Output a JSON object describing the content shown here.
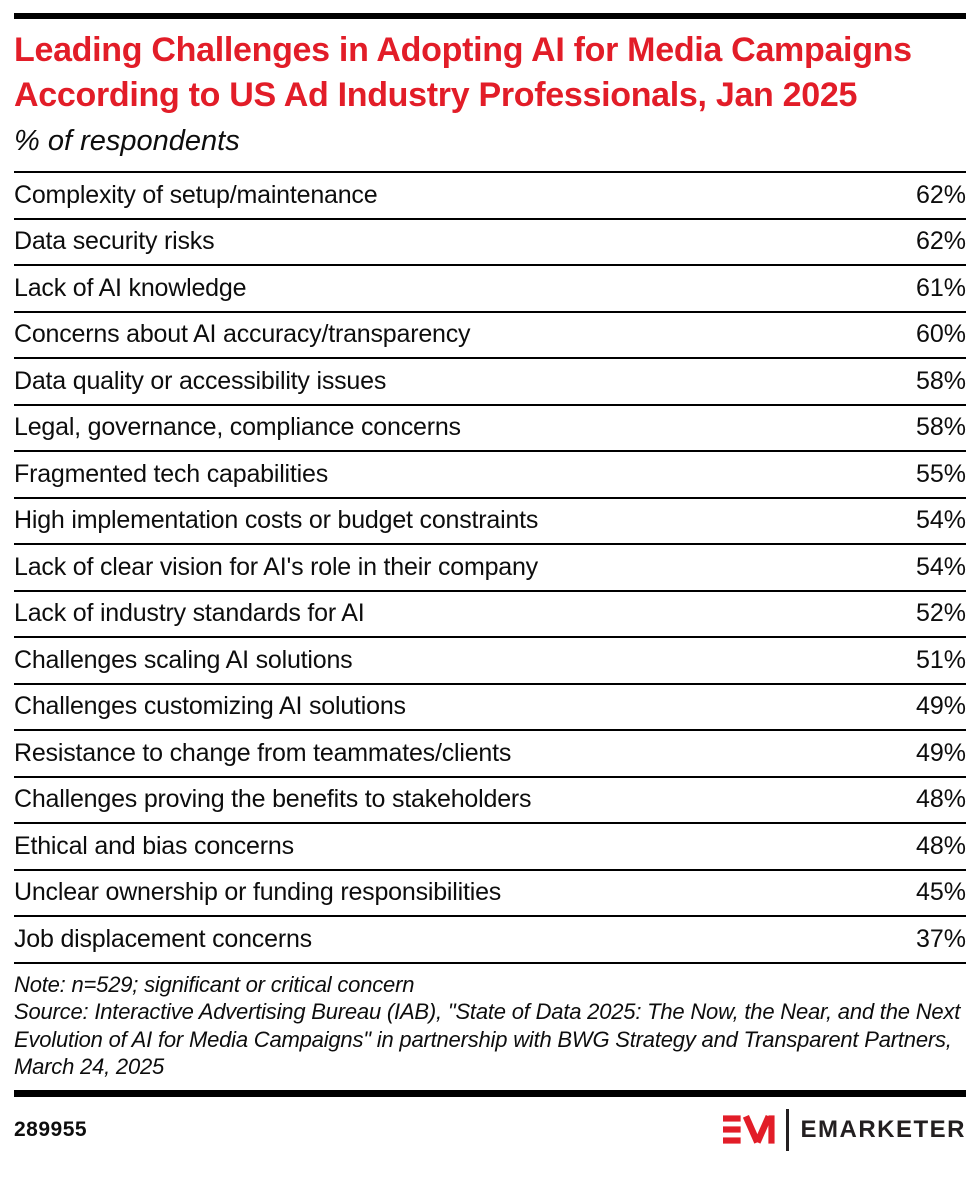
{
  "header": {
    "title": "Leading Challenges in Adopting AI for Media Campaigns According to US Ad Industry Professionals, Jan 2025",
    "subtitle": "% of respondents",
    "title_color": "#e21d28"
  },
  "chart_data": {
    "type": "table",
    "title": "Leading Challenges in Adopting AI for Media Campaigns According to US Ad Industry Professionals, Jan 2025",
    "subtitle": "% of respondents",
    "unit": "%",
    "categories": [
      "Complexity of setup/maintenance",
      "Data security risks",
      "Lack of AI knowledge",
      "Concerns about AI accuracy/transparency",
      "Data quality or accessibility issues",
      "Legal, governance, compliance concerns",
      "Fragmented tech capabilities",
      "High implementation costs or budget constraints",
      "Lack of clear vision for AI's role in their company",
      "Lack of industry standards for AI",
      "Challenges scaling AI solutions",
      "Challenges customizing AI solutions",
      "Resistance to change from teammates/clients",
      "Challenges proving the benefits to stakeholders",
      "Ethical and bias concerns",
      "Unclear ownership or funding responsibilities",
      "Job displacement concerns"
    ],
    "values": [
      62,
      62,
      61,
      60,
      58,
      58,
      55,
      54,
      54,
      52,
      51,
      49,
      49,
      48,
      48,
      45,
      37
    ]
  },
  "notes": {
    "note": "Note: n=529; significant or critical concern",
    "source": "Source: Interactive Advertising Bureau (IAB), \"State of Data 2025: The Now, the Near, and the Next Evolution of AI for Media Campaigns\" in partnership with BWG Strategy and Transparent Partners, March 24, 2025"
  },
  "footer": {
    "chart_number": "289955",
    "brand": "EMARKETER",
    "brand_color": "#e21d28"
  }
}
